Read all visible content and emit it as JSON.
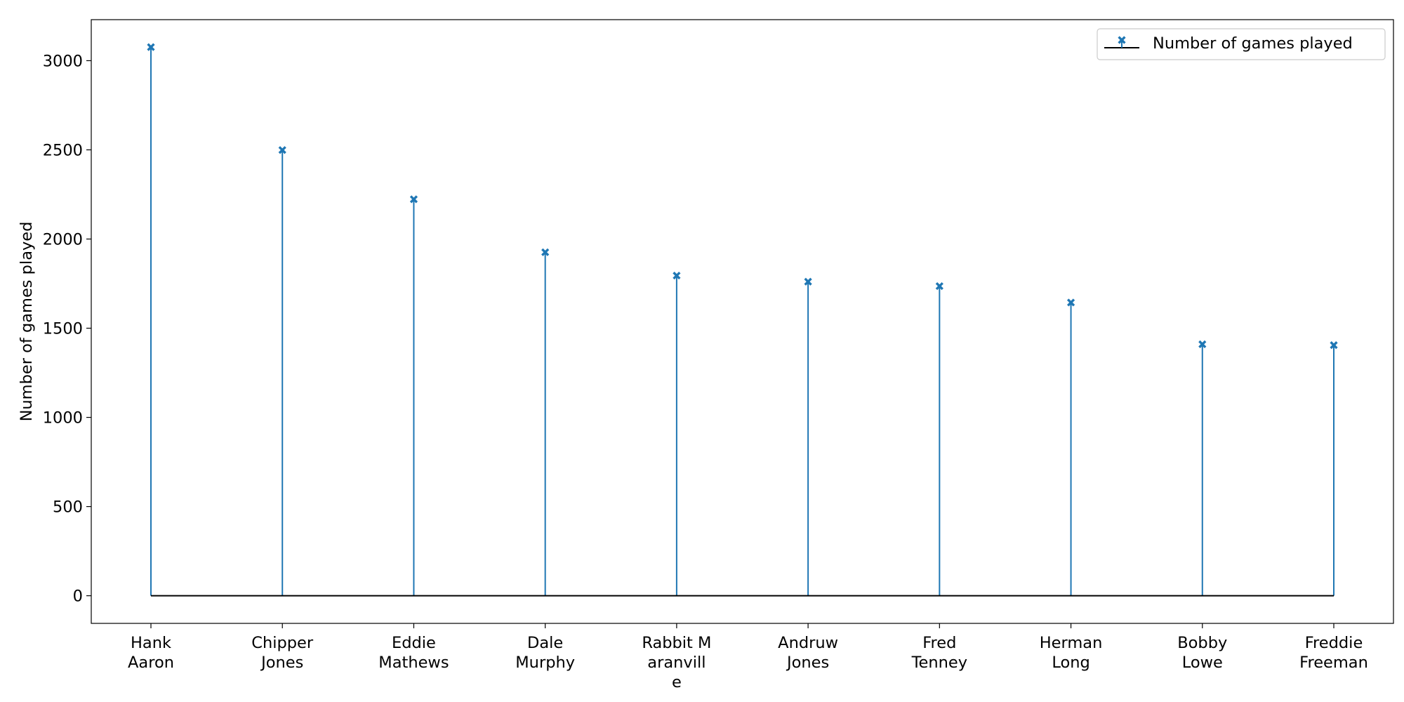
{
  "chart_data": {
    "type": "stem",
    "categories": [
      [
        "Hank",
        "Aaron"
      ],
      [
        "Chipper",
        "Jones"
      ],
      [
        "Eddie",
        "Mathews"
      ],
      [
        "Dale",
        "Murphy"
      ],
      [
        "Rabbit M",
        "aranvill",
        "e"
      ],
      [
        "Andruw",
        "Jones"
      ],
      [
        "Fred",
        "Tenney"
      ],
      [
        "Herman",
        "Long"
      ],
      [
        "Bobby",
        "Lowe"
      ],
      [
        "Freddie",
        "Freeman"
      ]
    ],
    "series": [
      {
        "name": "Number of games played",
        "values": [
          3076,
          2499,
          2223,
          1926,
          1795,
          1761,
          1736,
          1644,
          1410,
          1405
        ],
        "color": "#1f77b4",
        "baseline_color": "#000000",
        "marker": "x-filled"
      }
    ],
    "ylabel": "Number of games played",
    "xlabel": "",
    "ylim": [
      -155,
      3230
    ],
    "yticks": [
      0,
      500,
      1000,
      1500,
      2000,
      2500,
      3000
    ],
    "grid": false,
    "legend": "top-right"
  }
}
